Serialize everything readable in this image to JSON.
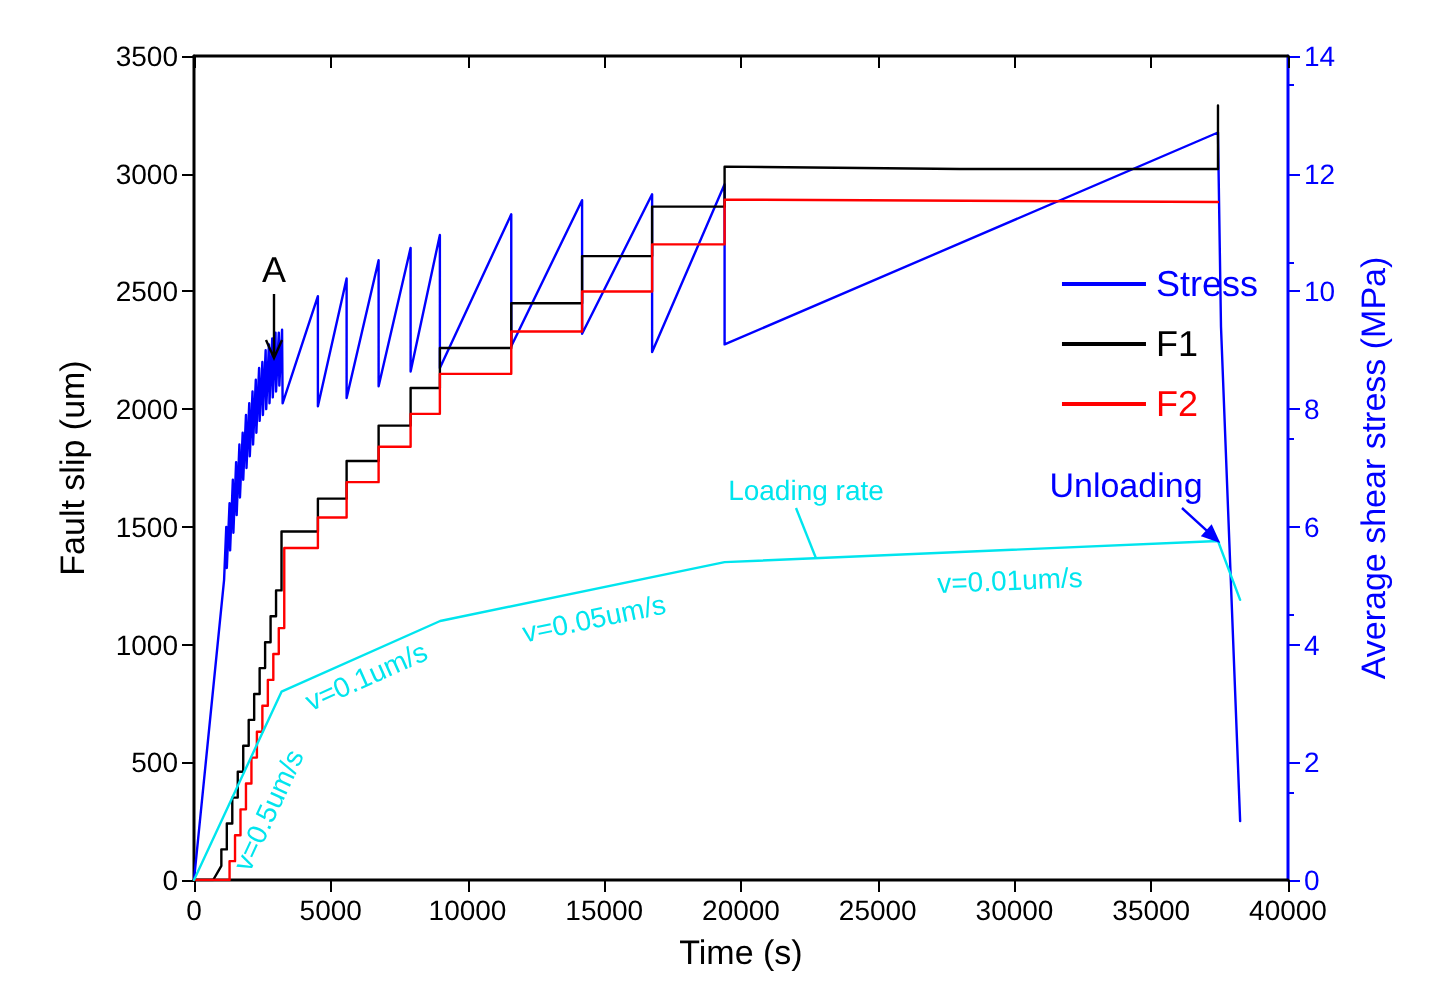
{
  "chart_data": {
    "type": "line",
    "xlabel": "Time (s)",
    "ylabel": "Fault slip (um)",
    "y2label": "Average shear stress (MPa)",
    "xlim": [
      0,
      40000
    ],
    "xticks": [
      0,
      5000,
      10000,
      15000,
      20000,
      25000,
      30000,
      35000,
      40000
    ],
    "ylim": [
      0,
      3500
    ],
    "yticks": [
      0,
      500,
      1000,
      1500,
      2000,
      2500,
      3000,
      3500
    ],
    "y2lim": [
      0,
      14
    ],
    "y2ticks": [
      0,
      2,
      4,
      6,
      8,
      10,
      12,
      14
    ],
    "legend": "right",
    "marker": "none",
    "line_style": "solid",
    "grid": false,
    "series": [
      {
        "name": "Stress",
        "color": "#0000ff",
        "axis": "y2",
        "x": [
          0,
          1100,
          1180,
          1200,
          1300,
          1320,
          1420,
          1440,
          1540,
          1560,
          1660,
          1680,
          1780,
          1800,
          1900,
          1920,
          2020,
          2040,
          2140,
          2160,
          2260,
          2280,
          2380,
          2400,
          2500,
          2520,
          2620,
          2640,
          2740,
          2760,
          2860,
          2880,
          2980,
          3000,
          3100,
          3120,
          3220,
          3240,
          4530,
          4530,
          5580,
          5580,
          6750,
          6750,
          7920,
          7920,
          8990,
          8990,
          11600,
          11600,
          14190,
          14190,
          16750,
          16750,
          19400,
          19400,
          37440,
          37550,
          38250
        ],
        "values": [
          0,
          5.1,
          6.0,
          5.3,
          6.4,
          5.6,
          6.8,
          5.9,
          7.1,
          6.2,
          7.4,
          6.5,
          7.6,
          6.8,
          7.9,
          7.0,
          8.1,
          7.2,
          8.3,
          7.4,
          8.5,
          7.6,
          8.7,
          7.8,
          8.8,
          7.9,
          9.0,
          8.0,
          9.1,
          8.1,
          9.2,
          8.2,
          9.3,
          8.3,
          9.3,
          8.4,
          9.35,
          8.1,
          9.92,
          8.05,
          10.22,
          8.19,
          10.53,
          8.39,
          10.74,
          8.64,
          10.96,
          8.7,
          11.31,
          9.07,
          11.55,
          9.28,
          11.65,
          8.97,
          11.82,
          9.1,
          12.7,
          9.4,
          1.0
        ]
      },
      {
        "name": "F1",
        "color": "#000000",
        "x": [
          0,
          700,
          900,
          1000,
          1000,
          1200,
          1200,
          1400,
          1400,
          1600,
          1600,
          1800,
          1800,
          2000,
          2000,
          2200,
          2200,
          2400,
          2400,
          2600,
          2600,
          2800,
          2800,
          3000,
          3000,
          3200,
          3200,
          4530,
          4530,
          5580,
          5580,
          6750,
          6750,
          7920,
          7920,
          8990,
          8990,
          11600,
          11600,
          14190,
          14190,
          16750,
          16750,
          19400,
          19400,
          28000,
          37440,
          37440
        ],
        "values": [
          0,
          0,
          40,
          60,
          130,
          130,
          240,
          240,
          350,
          350,
          460,
          460,
          570,
          570,
          680,
          680,
          790,
          790,
          900,
          900,
          1010,
          1010,
          1120,
          1120,
          1230,
          1230,
          1480,
          1480,
          1620,
          1620,
          1780,
          1780,
          1930,
          1930,
          2090,
          2090,
          2260,
          2260,
          2450,
          2450,
          2650,
          2650,
          2860,
          2860,
          3030,
          3020,
          3020,
          3290
        ]
      },
      {
        "name": "F2",
        "color": "#ff0000",
        "x": [
          0,
          1300,
          1300,
          1500,
          1500,
          1700,
          1700,
          1900,
          1900,
          2100,
          2100,
          2300,
          2300,
          2500,
          2500,
          2700,
          2700,
          2900,
          2900,
          3100,
          3100,
          3300,
          3300,
          4530,
          4530,
          5580,
          5580,
          6750,
          6750,
          7920,
          7920,
          8990,
          8990,
          11600,
          11600,
          14190,
          14190,
          16750,
          16750,
          19400,
          19400,
          37440
        ],
        "values": [
          0,
          0,
          80,
          80,
          190,
          190,
          300,
          300,
          410,
          410,
          520,
          520,
          630,
          630,
          740,
          740,
          850,
          850,
          960,
          960,
          1070,
          1070,
          1410,
          1410,
          1540,
          1540,
          1690,
          1690,
          1840,
          1840,
          1980,
          1980,
          2150,
          2150,
          2330,
          2330,
          2500,
          2500,
          2700,
          2700,
          2890,
          2880
        ]
      },
      {
        "color": "#00e5ee",
        "x": [
          0,
          3200,
          9000,
          19400,
          37440,
          38250
        ],
        "values": [
          0,
          800,
          1100,
          1350,
          1440,
          1190
        ]
      }
    ],
    "annotations": [
      "A",
      "Loading rate",
      "Unloading",
      "v=0.5um/s",
      "v=0.1um/s",
      "v=0.05um/s",
      "v=0.01um/s"
    ]
  }
}
